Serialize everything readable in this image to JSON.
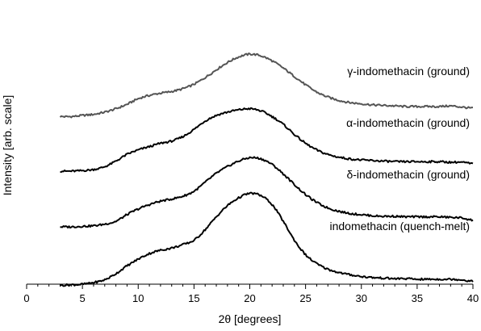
{
  "chart_data": {
    "type": "line",
    "xlabel": "2θ [degrees]",
    "ylabel": "Intensity [arb. scale]",
    "xlim": [
      0,
      40
    ],
    "x_ticks": [
      0,
      5,
      10,
      15,
      20,
      25,
      30,
      35,
      40
    ],
    "x_tick_labels": [
      "0",
      "5",
      "10",
      "15",
      "20",
      "25",
      "30",
      "35",
      "40"
    ],
    "y_ticks_shown": false,
    "grid": false,
    "legend": "inline labels",
    "x": [
      3,
      4,
      5,
      6,
      7,
      8,
      9,
      10,
      11,
      12,
      13,
      14,
      15,
      16,
      17,
      18,
      19,
      20,
      21,
      22,
      23,
      24,
      25,
      26,
      27,
      28,
      29,
      30,
      31,
      32,
      33,
      34,
      35,
      36,
      37,
      38,
      39,
      40
    ],
    "series": [
      {
        "name": "γ-indomethacin (ground)",
        "color": "#555555",
        "values": [
          1.98,
          1.98,
          2.0,
          2.02,
          2.06,
          2.12,
          2.2,
          2.3,
          2.36,
          2.4,
          2.43,
          2.48,
          2.56,
          2.68,
          2.82,
          2.95,
          3.05,
          3.1,
          3.07,
          2.98,
          2.85,
          2.7,
          2.55,
          2.42,
          2.33,
          2.27,
          2.23,
          2.21,
          2.19,
          2.18,
          2.17,
          2.16,
          2.16,
          2.16,
          2.16,
          2.17,
          2.15,
          2.13
        ]
      },
      {
        "name": "α-indomethacin (ground)",
        "color": "#000000",
        "values": [
          1.0,
          1.0,
          1.01,
          1.03,
          1.08,
          1.18,
          1.3,
          1.38,
          1.44,
          1.5,
          1.54,
          1.62,
          1.75,
          1.9,
          2.0,
          2.06,
          2.1,
          2.12,
          2.08,
          1.98,
          1.84,
          1.66,
          1.5,
          1.38,
          1.3,
          1.25,
          1.22,
          1.2,
          1.19,
          1.18,
          1.17,
          1.17,
          1.17,
          1.17,
          1.17,
          1.16,
          1.16,
          1.13
        ]
      },
      {
        "name": "δ-indomethacin (ground)",
        "color": "#000000",
        "values": [
          0.0,
          0.0,
          0.01,
          0.02,
          0.05,
          0.1,
          0.22,
          0.32,
          0.4,
          0.46,
          0.5,
          0.55,
          0.64,
          0.8,
          0.96,
          1.08,
          1.18,
          1.24,
          1.22,
          1.12,
          0.95,
          0.76,
          0.58,
          0.44,
          0.34,
          0.28,
          0.24,
          0.22,
          0.2,
          0.19,
          0.19,
          0.18,
          0.18,
          0.18,
          0.18,
          0.17,
          0.16,
          0.12
        ]
      },
      {
        "name": "indomethacin (quench-melt)",
        "color": "#000000",
        "values": [
          -1.05,
          -1.04,
          -1.03,
          -1.0,
          -0.95,
          -0.84,
          -0.7,
          -0.58,
          -0.48,
          -0.42,
          -0.38,
          -0.32,
          -0.24,
          -0.05,
          0.18,
          0.38,
          0.52,
          0.6,
          0.56,
          0.4,
          0.1,
          -0.24,
          -0.5,
          -0.66,
          -0.76,
          -0.82,
          -0.86,
          -0.89,
          -0.91,
          -0.92,
          -0.93,
          -0.93,
          -0.94,
          -0.94,
          -0.94,
          -0.94,
          -0.95,
          -0.98
        ]
      }
    ]
  }
}
